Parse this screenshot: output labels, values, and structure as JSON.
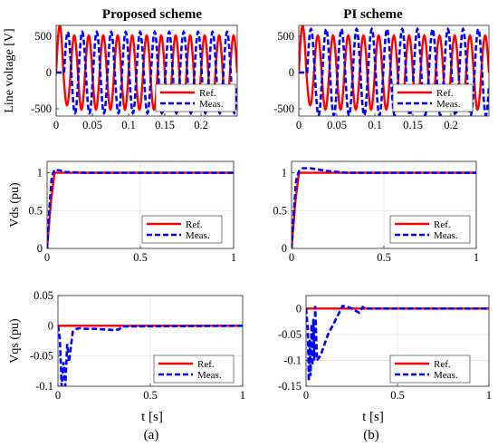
{
  "figure": {
    "col_a_title": "Proposed scheme",
    "col_b_title": "PI scheme",
    "caption_a": "(a)",
    "caption_b": "(b)",
    "xlabel": "t  [s]",
    "colors": {
      "ref": "#ff0000",
      "meas": "#0000ff",
      "grid": "#e3e3e3",
      "axis": "#262626"
    }
  },
  "chart_data": [
    {
      "id": "a-line-voltage",
      "type": "line",
      "ylabel": "Line voltage [V]",
      "xlabel": "",
      "xlim": [
        0,
        0.25
      ],
      "ylim": [
        -600,
        650
      ],
      "xticks": [
        0,
        0.05,
        0.1,
        0.15,
        0.2
      ],
      "xtick_labels": [
        "0",
        "0.05",
        "0.1",
        "0.15",
        "0.2"
      ],
      "yticks": [
        -500,
        0,
        500
      ],
      "ytick_labels": [
        "-500",
        "0",
        "500"
      ],
      "grid": true,
      "legend_position": "bottom-right",
      "series": [
        {
          "name": "Ref.",
          "style": "solid",
          "kind": "sine",
          "amplitude": 510,
          "frequency_hz": 50,
          "phase_deg": 0,
          "t_start": 0.0,
          "t_end": 0.25,
          "startup_peak": 650,
          "startup_trough": -450
        },
        {
          "name": "Meas.",
          "style": "dashed",
          "kind": "sine",
          "amplitude": 520,
          "frequency_hz": 50,
          "phase_deg": 0,
          "t_start": 0.0,
          "t_end": 0.25,
          "flat_until": 0.011,
          "peak": 560,
          "trough": -560
        }
      ]
    },
    {
      "id": "b-line-voltage",
      "type": "line",
      "ylabel": "",
      "xlabel": "",
      "xlim": [
        0,
        0.25
      ],
      "ylim": [
        -600,
        650
      ],
      "xticks": [
        0,
        0.05,
        0.1,
        0.15,
        0.2
      ],
      "xtick_labels": [
        "0",
        "0.05",
        "0.1",
        "0.15",
        "0.2"
      ],
      "yticks": [
        -500,
        0,
        500
      ],
      "ytick_labels": [
        "-500",
        "0",
        "500"
      ],
      "grid": true,
      "legend_position": "bottom-right",
      "series": [
        {
          "name": "Ref.",
          "style": "solid",
          "kind": "sine",
          "amplitude": 510,
          "frequency_hz": 50,
          "phase_deg": 0,
          "t_start": 0.0,
          "t_end": 0.25,
          "startup_peak": 650,
          "startup_trough": -450
        },
        {
          "name": "Meas.",
          "style": "dashed",
          "kind": "sine",
          "amplitude": 510,
          "frequency_hz": 50,
          "phase_deg": 0,
          "t_start": 0.0,
          "t_end": 0.25,
          "flat_until": 0.011,
          "peak": 600,
          "trough": -590
        }
      ]
    },
    {
      "id": "a-vds",
      "type": "line",
      "ylabel": "Vds (pu)",
      "xlabel": "",
      "xlim": [
        0,
        1
      ],
      "ylim": [
        0,
        1.15
      ],
      "xticks": [
        0,
        0.5,
        1
      ],
      "xtick_labels": [
        "0",
        "0.5",
        "1"
      ],
      "yticks": [
        0,
        0.5,
        1
      ],
      "ytick_labels": [
        "0",
        "0.5",
        "1"
      ],
      "grid": true,
      "legend_position": "bottom-right",
      "series": [
        {
          "name": "Ref.",
          "style": "solid",
          "x": [
            0,
            0.02,
            0.04,
            1
          ],
          "y": [
            0,
            0.6,
            1.0,
            1.0
          ]
        },
        {
          "name": "Meas.",
          "style": "dashed",
          "x": [
            0,
            0.01,
            0.025,
            0.04,
            0.07,
            0.1,
            0.2,
            0.3,
            1
          ],
          "y": [
            0,
            0.45,
            0.95,
            1.04,
            1.03,
            1.01,
            1.0,
            1.0,
            1.0
          ]
        }
      ]
    },
    {
      "id": "b-vds",
      "type": "line",
      "ylabel": "",
      "xlabel": "",
      "xlim": [
        0,
        1
      ],
      "ylim": [
        0,
        1.15
      ],
      "xticks": [
        0,
        0.5,
        1
      ],
      "xtick_labels": [
        "0",
        "0.5",
        "1"
      ],
      "yticks": [
        0,
        0.5,
        1
      ],
      "ytick_labels": [
        "0",
        "0.5",
        "1"
      ],
      "grid": true,
      "legend_position": "bottom-right",
      "series": [
        {
          "name": "Ref.",
          "style": "solid",
          "x": [
            0,
            0.02,
            0.04,
            1
          ],
          "y": [
            0,
            0.6,
            1.0,
            1.0
          ]
        },
        {
          "name": "Meas.",
          "style": "dashed",
          "x": [
            0,
            0.01,
            0.025,
            0.04,
            0.06,
            0.1,
            0.15,
            0.2,
            0.25,
            0.3,
            1
          ],
          "y": [
            0,
            0.4,
            0.9,
            1.02,
            1.06,
            1.06,
            1.04,
            1.02,
            1.01,
            1.0,
            1.0
          ]
        }
      ]
    },
    {
      "id": "a-vqs",
      "type": "line",
      "ylabel": "Vqs (pu)",
      "xlabel": "t  [s]",
      "xlim": [
        0,
        1
      ],
      "ylim": [
        -0.1,
        0.05
      ],
      "xticks": [
        0,
        0.5,
        1
      ],
      "xtick_labels": [
        "0",
        "0.5",
        "1"
      ],
      "yticks": [
        -0.1,
        -0.05,
        0,
        0.05
      ],
      "ytick_labels": [
        "-0.1",
        "-0.05",
        "0",
        "0.05"
      ],
      "grid": true,
      "legend_position": "bottom-right",
      "series": [
        {
          "name": "Ref.",
          "style": "solid",
          "x": [
            0,
            1
          ],
          "y": [
            0,
            0
          ]
        },
        {
          "name": "Meas.",
          "style": "dashed",
          "x": [
            0,
            0.01,
            0.02,
            0.03,
            0.04,
            0.05,
            0.06,
            0.08,
            0.1,
            0.12,
            0.15,
            0.2,
            0.25,
            0.3,
            0.33,
            0.35,
            1
          ],
          "y": [
            0,
            -0.02,
            -0.1,
            -0.06,
            -0.1,
            -0.03,
            -0.06,
            -0.01,
            -0.005,
            -0.004,
            -0.005,
            -0.005,
            -0.006,
            -0.007,
            -0.006,
            -0.001,
            0
          ]
        }
      ]
    },
    {
      "id": "b-vqs",
      "type": "line",
      "ylabel": "",
      "xlabel": "t  [s]",
      "xlim": [
        0,
        1
      ],
      "ylim": [
        -0.15,
        0.025
      ],
      "xticks": [
        0,
        0.5,
        1
      ],
      "xtick_labels": [
        "0",
        "0.5",
        "1"
      ],
      "yticks": [
        -0.15,
        -0.1,
        -0.05,
        0
      ],
      "ytick_labels": [
        "-0.15",
        "-0.1",
        "-0.05",
        "0"
      ],
      "grid": true,
      "legend_position": "bottom-right",
      "series": [
        {
          "name": "Ref.",
          "style": "solid",
          "x": [
            0,
            1
          ],
          "y": [
            0,
            0
          ]
        },
        {
          "name": "Meas.",
          "style": "dashed",
          "x": [
            0,
            0.01,
            0.015,
            0.02,
            0.025,
            0.03,
            0.035,
            0.04,
            0.045,
            0.05,
            0.06,
            0.08,
            0.1,
            0.12,
            0.15,
            0.2,
            0.23,
            0.26,
            0.29,
            0.31,
            0.33,
            1
          ],
          "y": [
            0,
            -0.04,
            -0.14,
            -0.06,
            -0.13,
            -0.03,
            -0.11,
            -0.02,
            -0.1,
            0.005,
            -0.1,
            -0.09,
            -0.07,
            -0.05,
            -0.03,
            0.005,
            0.003,
            -0.002,
            -0.008,
            0.003,
            0,
            0
          ]
        }
      ]
    }
  ]
}
